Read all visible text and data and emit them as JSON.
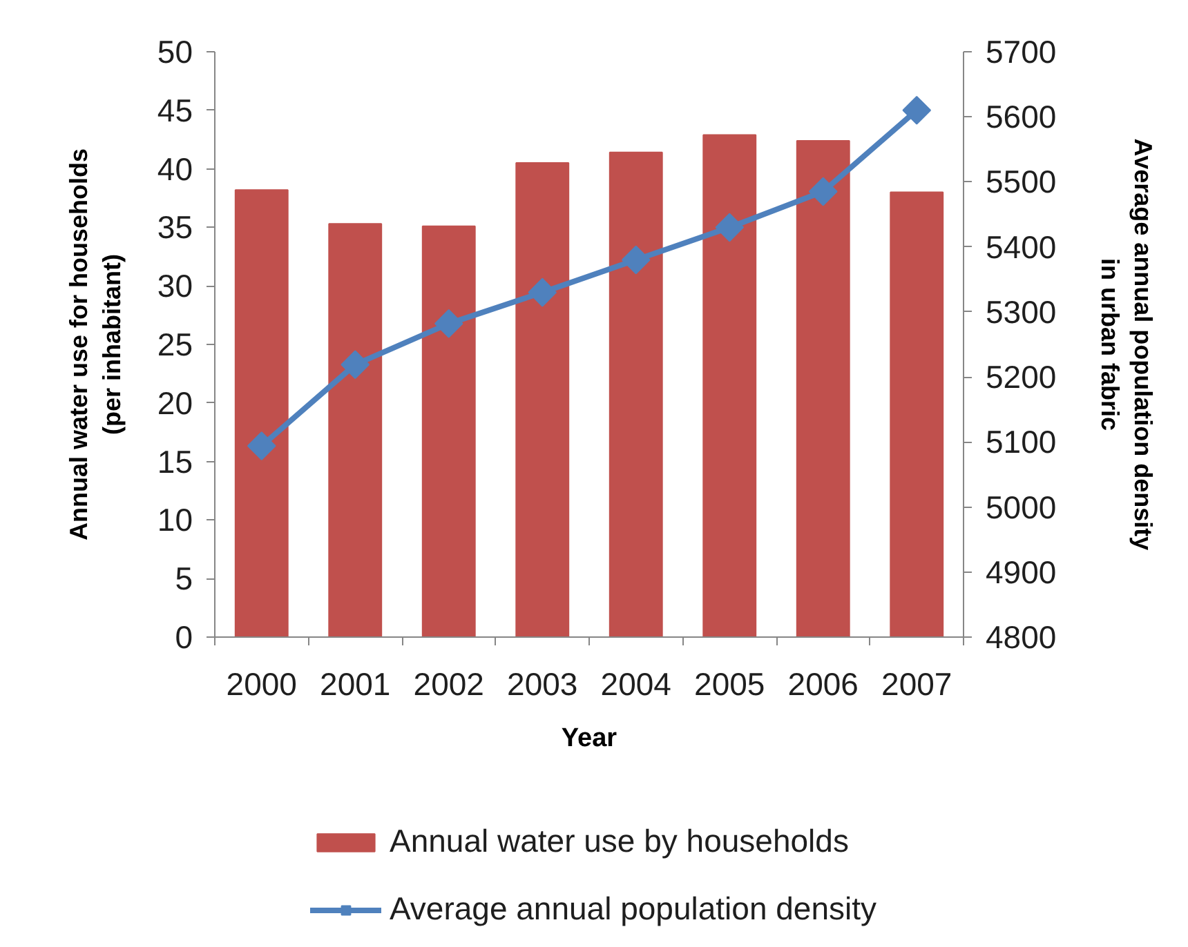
{
  "chart_data": {
    "type": "bar",
    "categories": [
      "2000",
      "2001",
      "2002",
      "2003",
      "2004",
      "2005",
      "2006",
      "2007"
    ],
    "xlabel": "Year",
    "ylabel": "Annual water use for households\n(per inhabitant)",
    "y2label": "Average annual population density\nin urban fabric",
    "ylim": [
      0,
      50
    ],
    "yticks": [
      0,
      5,
      10,
      15,
      20,
      25,
      30,
      35,
      40,
      45,
      50
    ],
    "y2lim": [
      4800,
      5700
    ],
    "y2ticks": [
      4800,
      4900,
      5000,
      5100,
      5200,
      5300,
      5400,
      5500,
      5600,
      5700
    ],
    "series": [
      {
        "name": "Annual water use by households",
        "color": "#c0504d",
        "values": [
          38.2,
          35.3,
          35.1,
          40.5,
          41.4,
          42.9,
          42.4,
          38.0
        ]
      },
      {
        "name": "Average annual population density",
        "type": "line",
        "axis": "y2",
        "color": "#4f81bd",
        "marker": "diamond",
        "line_style": "solid",
        "values": [
          5094,
          5219,
          5282,
          5330,
          5380,
          5430,
          5485,
          5610
        ]
      }
    ],
    "grid": false,
    "legend": "bottom"
  }
}
